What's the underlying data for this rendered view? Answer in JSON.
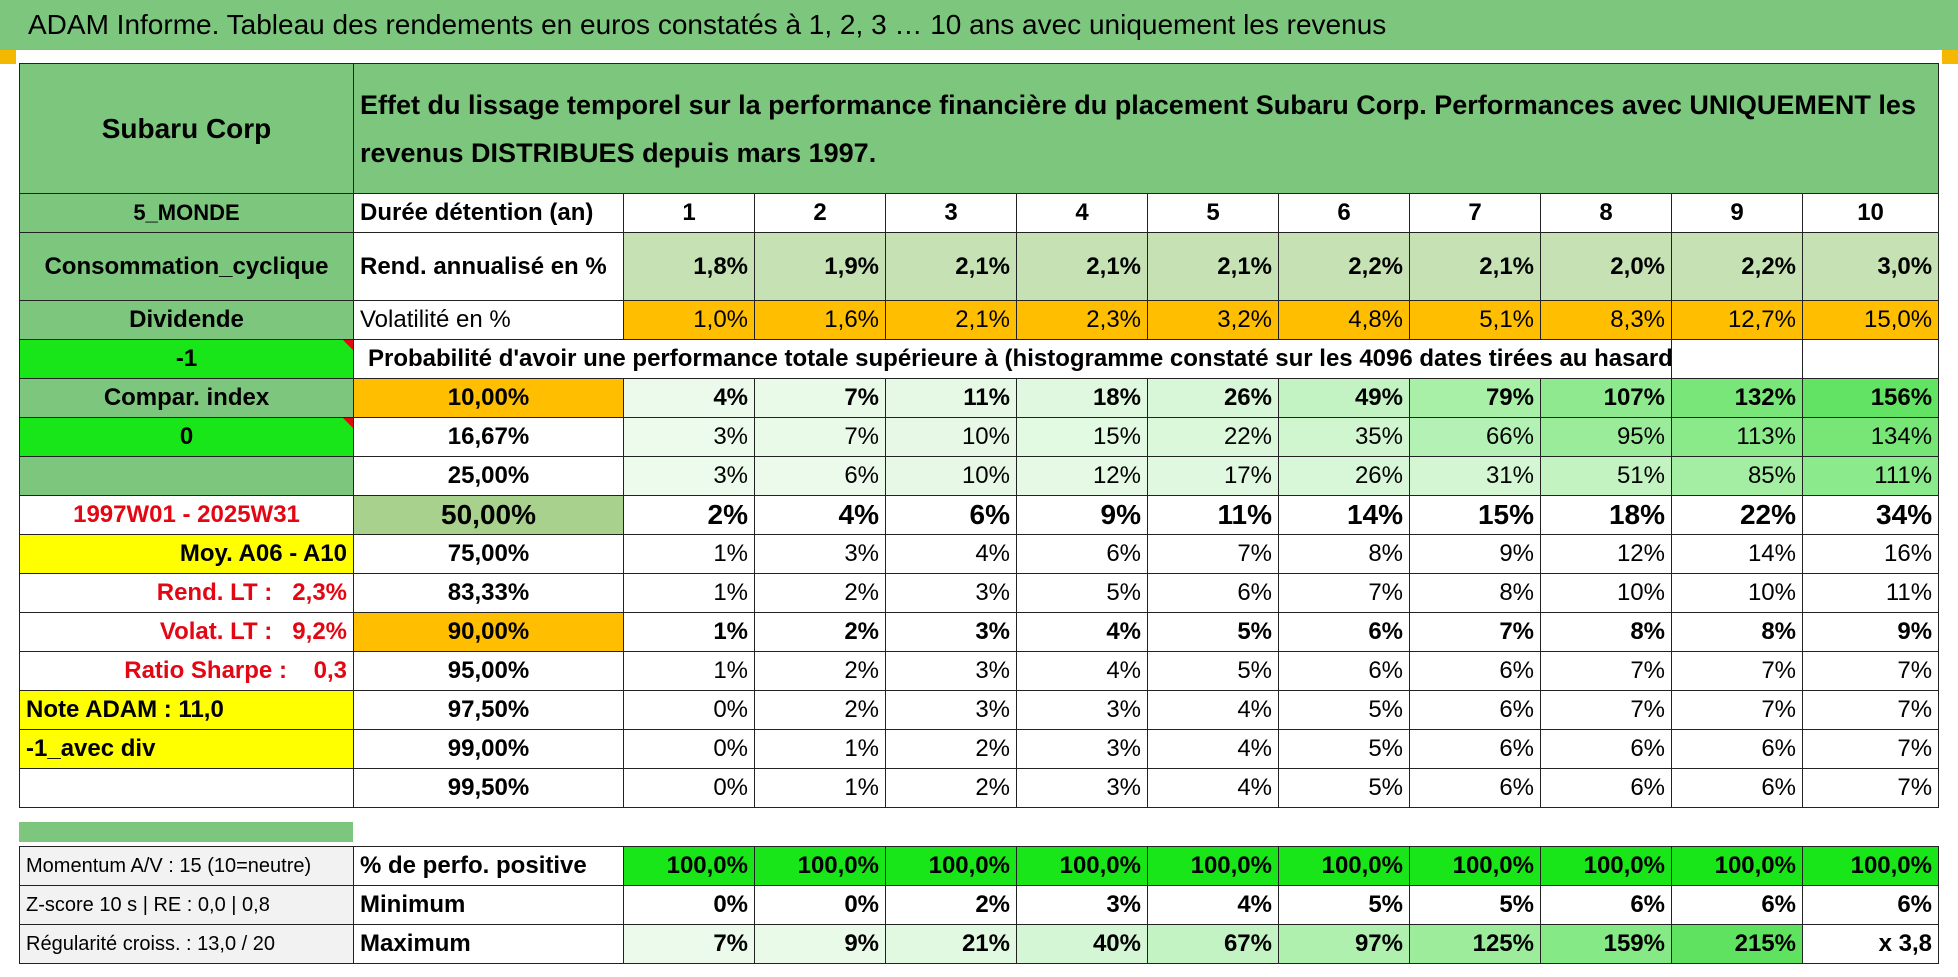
{
  "title": "ADAM Informe. Tableau des rendements en euros constatés à 1, 2, 3 … 10 ans avec uniquement les revenus",
  "company": "Subaru Corp",
  "description": "Effet du lissage temporel sur la performance financière du placement Subaru Corp. Performances avec UNIQUEMENT les revenus DISTRIBUES depuis mars 1997.",
  "region": "5_MONDE",
  "sector": "Consommation_cyclique",
  "income_type": "Dividende",
  "param1": "-1",
  "compar_label": "Compar. index",
  "param2": "0",
  "period": "1997W01 - 2025W31",
  "moy_label": "Moy. A06 - A10",
  "rend_lt_label": "Rend. LT :",
  "rend_lt_value": "2,3%",
  "volat_lt_label": "Volat. LT :",
  "volat_lt_value": "9,2%",
  "sharpe_label": "Ratio Sharpe :",
  "sharpe_value": "0,3",
  "note_adam": "Note ADAM : 11,0",
  "div_flag": "-1_avec div",
  "row_labels": {
    "duration": "Durée détention (an)",
    "rend": "Rend. annualisé en %",
    "volat": "Volatilité en %",
    "proba": "Probabilité d'avoir une performance totale supérieure à (histogramme constaté sur les 4096 dates tirées au hasard)"
  },
  "years": [
    "1",
    "2",
    "3",
    "4",
    "5",
    "6",
    "7",
    "8",
    "9",
    "10"
  ],
  "rend": [
    "1,8%",
    "1,9%",
    "2,1%",
    "2,1%",
    "2,1%",
    "2,2%",
    "2,1%",
    "2,0%",
    "2,2%",
    "3,0%"
  ],
  "volat": [
    "1,0%",
    "1,6%",
    "2,1%",
    "2,3%",
    "3,2%",
    "4,8%",
    "5,1%",
    "8,3%",
    "12,7%",
    "15,0%"
  ],
  "percentiles": [
    {
      "p": "10,00%",
      "values": [
        "4%",
        "7%",
        "11%",
        "18%",
        "26%",
        "49%",
        "79%",
        "107%",
        "132%",
        "156%"
      ]
    },
    {
      "p": "16,67%",
      "values": [
        "3%",
        "7%",
        "10%",
        "15%",
        "22%",
        "35%",
        "66%",
        "95%",
        "113%",
        "134%"
      ]
    },
    {
      "p": "25,00%",
      "values": [
        "3%",
        "6%",
        "10%",
        "12%",
        "17%",
        "26%",
        "31%",
        "51%",
        "85%",
        "111%"
      ]
    },
    {
      "p": "50,00%",
      "values": [
        "2%",
        "4%",
        "6%",
        "9%",
        "11%",
        "14%",
        "15%",
        "18%",
        "22%",
        "34%"
      ]
    },
    {
      "p": "75,00%",
      "values": [
        "1%",
        "3%",
        "4%",
        "6%",
        "7%",
        "8%",
        "9%",
        "12%",
        "14%",
        "16%"
      ]
    },
    {
      "p": "83,33%",
      "values": [
        "1%",
        "2%",
        "3%",
        "5%",
        "6%",
        "7%",
        "8%",
        "10%",
        "10%",
        "11%"
      ]
    },
    {
      "p": "90,00%",
      "values": [
        "1%",
        "2%",
        "3%",
        "4%",
        "5%",
        "6%",
        "7%",
        "8%",
        "8%",
        "9%"
      ]
    },
    {
      "p": "95,00%",
      "values": [
        "1%",
        "2%",
        "3%",
        "4%",
        "5%",
        "6%",
        "6%",
        "7%",
        "7%",
        "7%"
      ]
    },
    {
      "p": "97,50%",
      "values": [
        "0%",
        "2%",
        "3%",
        "3%",
        "4%",
        "5%",
        "6%",
        "7%",
        "7%",
        "7%"
      ]
    },
    {
      "p": "99,00%",
      "values": [
        "0%",
        "1%",
        "2%",
        "3%",
        "4%",
        "5%",
        "6%",
        "6%",
        "6%",
        "7%"
      ]
    },
    {
      "p": "99,50%",
      "values": [
        "0%",
        "1%",
        "2%",
        "3%",
        "4%",
        "5%",
        "6%",
        "6%",
        "6%",
        "7%"
      ]
    }
  ],
  "bottom": [
    {
      "side": "Momentum A/V : 15 (10=neutre)",
      "label": "% de perfo. positive",
      "values": [
        "100,0%",
        "100,0%",
        "100,0%",
        "100,0%",
        "100,0%",
        "100,0%",
        "100,0%",
        "100,0%",
        "100,0%",
        "100,0%"
      ]
    },
    {
      "side": "Z-score 10 s | RE : 0,0 | 0,8",
      "label": "Minimum",
      "values": [
        "0%",
        "0%",
        "2%",
        "3%",
        "4%",
        "5%",
        "5%",
        "6%",
        "6%",
        "6%"
      ]
    },
    {
      "side": "Régularité croiss. : 13,0 / 20",
      "label": "Maximum",
      "values": [
        "7%",
        "9%",
        "21%",
        "40%",
        "67%",
        "97%",
        "125%",
        "159%",
        "215%",
        "x 3,8"
      ]
    }
  ],
  "colors": {
    "header_green": "#7dc67d",
    "bright_green": "#19e619",
    "orange": "#ffbf00",
    "yellow": "#ffff00",
    "red_text": "#e30613",
    "heat_light": "#f0fbef",
    "heat_strong": "#5fe25f"
  }
}
